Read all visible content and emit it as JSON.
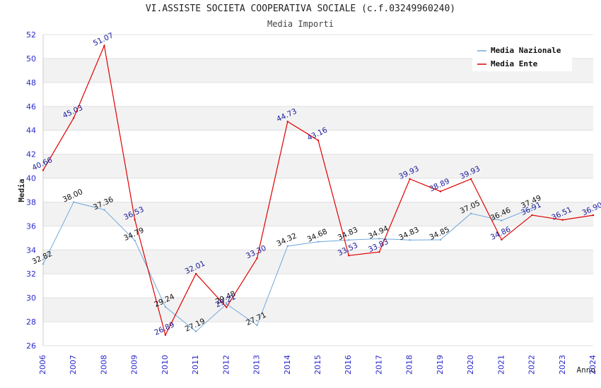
{
  "chart_data": {
    "type": "line",
    "title": "VI.ASSISTE SOCIETA COOPERATIVA SOCIALE (c.f.03249960240)",
    "subtitle": "Media Importi",
    "xlabel": "Anno",
    "ylabel": "Media",
    "ylim": [
      26,
      52
    ],
    "y_ticks": [
      "26",
      "28",
      "30",
      "32",
      "34",
      "36",
      "38",
      "40",
      "42",
      "44",
      "46",
      "48",
      "50",
      "52"
    ],
    "categories": [
      "2006",
      "2007",
      "2008",
      "2009",
      "2010",
      "2011",
      "2012",
      "2013",
      "2014",
      "2015",
      "2016",
      "2017",
      "2018",
      "2019",
      "2020",
      "2021",
      "2022",
      "2023",
      "2024"
    ],
    "legend_position": "top-right",
    "series": [
      {
        "name": "Media Nazionale",
        "color": "#6fa8dc",
        "values": [
          32.82,
          38.0,
          37.36,
          34.79,
          29.24,
          27.19,
          29.48,
          27.71,
          34.32,
          34.68,
          34.83,
          34.94,
          34.83,
          34.85,
          37.05,
          36.46,
          37.49,
          null,
          null
        ],
        "labels": [
          "32.82",
          "38.00",
          "37.36",
          "34.79",
          "29.24",
          "27.19",
          "29.48",
          "27.71",
          "34.32",
          "34.68",
          "34.83",
          "34.94",
          "34.83",
          "34.85",
          "37.05",
          "36.46",
          "37.49",
          "",
          ""
        ]
      },
      {
        "name": "Media Ente",
        "color": "#e00000",
        "values": [
          40.66,
          45.03,
          51.07,
          36.53,
          26.89,
          32.01,
          29.21,
          33.3,
          44.73,
          43.16,
          33.53,
          33.83,
          39.93,
          38.89,
          39.93,
          34.86,
          36.91,
          36.51,
          36.9
        ],
        "labels": [
          "40.66",
          "45.03",
          "51.07",
          "36.53",
          "26.89",
          "32.01",
          "29.21",
          "33.30",
          "44.73",
          "43.16",
          "33.53",
          "33.83",
          "39.93",
          "38.89",
          "39.93",
          "34.86",
          "36.91",
          "36.51",
          "36.90"
        ]
      }
    ]
  }
}
